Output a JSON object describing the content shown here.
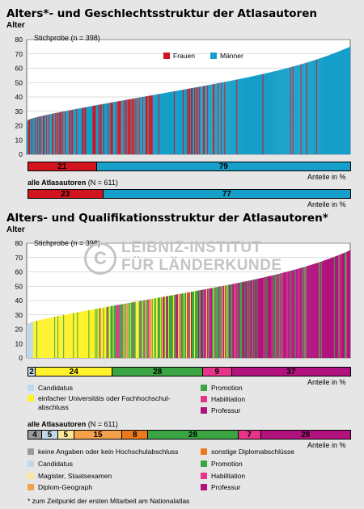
{
  "colors": {
    "frauen": "#d2141e",
    "maenner": "#159fc9",
    "keine": "#9a9a9a",
    "candidatus": "#bfd8ea",
    "universitaet": "#fff22a",
    "magister": "#fbe89a",
    "diplom_geograph": "#f5a04a",
    "sonstige": "#ec7a1c",
    "promotion": "#3aa542",
    "habilitation": "#e8338a",
    "professur": "#b1127e"
  },
  "section1": {
    "title": "Alters*- und Geschlechtsstruktur der Atlasautoren",
    "axis_title": "Alter",
    "sample": "Stichprobe (n = 398)",
    "legend": [
      {
        "label": "Frauen",
        "color": "#d2141e"
      },
      {
        "label": "Männer",
        "color": "#159fc9"
      }
    ],
    "share_sample": [
      {
        "value": "21",
        "pct": 21,
        "color": "#d2141e"
      },
      {
        "value": "79",
        "pct": 79,
        "color": "#159fc9"
      }
    ],
    "share_unit": "Anteile in %",
    "all_label": "alle Atlasautoren",
    "all_n": "(N = 611)",
    "share_all": [
      {
        "value": "23",
        "pct": 23,
        "color": "#d2141e"
      },
      {
        "value": "77",
        "pct": 77,
        "color": "#159fc9"
      }
    ],
    "share_unit2": "Anteile in %"
  },
  "section2": {
    "title": "Alters- und Qualifikationsstruktur der Atlasautoren*",
    "axis_title": "Alter",
    "sample": "Stichprobe (n = 398)",
    "watermark_line1": "LEIBNIZ-INSTITUT",
    "watermark_line2": "FÜR LÄNDERKUNDE",
    "share_sample": [
      {
        "value": "2",
        "pct": 2,
        "color": "#bfd8ea"
      },
      {
        "value": "24",
        "pct": 24,
        "color": "#fff22a"
      },
      {
        "value": "28",
        "pct": 28,
        "color": "#3aa542"
      },
      {
        "value": "9",
        "pct": 9,
        "color": "#e8338a"
      },
      {
        "value": "37",
        "pct": 37,
        "color": "#b1127e"
      }
    ],
    "share_unit": "Anteile in %",
    "legend_sample": [
      {
        "label": "Candidatus",
        "color": "#bfd8ea"
      },
      {
        "label": "einfacher Universitäts oder Fachhochschul-",
        "label2": "abschluss",
        "color": "#fff22a"
      },
      {
        "label": "Promotion",
        "color": "#3aa542"
      },
      {
        "label": "Habilitation",
        "color": "#e8338a"
      },
      {
        "label": "Professur",
        "color": "#b1127e"
      }
    ],
    "all_label": "alle Atlasautoren",
    "all_n": "(N = 611)",
    "share_all": [
      {
        "value": "4",
        "pct": 4,
        "color": "#9a9a9a"
      },
      {
        "value": "5",
        "pct": 5,
        "color": "#bfd8ea"
      },
      {
        "value": "5",
        "pct": 5,
        "color": "#fbe89a"
      },
      {
        "value": "15",
        "pct": 15,
        "color": "#f5a04a"
      },
      {
        "value": "8",
        "pct": 8,
        "color": "#ec7a1c"
      },
      {
        "value": "28",
        "pct": 28,
        "color": "#3aa542"
      },
      {
        "value": "7",
        "pct": 7,
        "color": "#e8338a"
      },
      {
        "value": "28",
        "pct": 28,
        "color": "#b1127e"
      }
    ],
    "share_unit2": "Anteile in %",
    "legend_all": [
      {
        "label": "keine Angaben oder kein Hochschulabschluss",
        "color": "#9a9a9a"
      },
      {
        "label": "sonstige Diplomabschlüsse",
        "color": "#ec7a1c"
      },
      {
        "label": "Candidatus",
        "color": "#bfd8ea"
      },
      {
        "label": "Promotion",
        "color": "#3aa542"
      },
      {
        "label": "Magister, Staatsexamen",
        "color": "#fbe89a"
      },
      {
        "label": "Habilitation",
        "color": "#e8338a"
      },
      {
        "label": "Diplom-Geograph",
        "color": "#f5a04a"
      },
      {
        "label": "Professur",
        "color": "#b1127e"
      }
    ],
    "footnote": "* zum Zeitpunkt der ersten Mitarbeit am Nationalatlas"
  },
  "chart_data": [
    {
      "type": "bar",
      "title": "Alters*- und Geschlechtsstruktur der Atlasautoren",
      "ylabel": "Alter",
      "ylim": [
        0,
        80
      ],
      "yticks": [
        0,
        10,
        20,
        30,
        40,
        50,
        60,
        70,
        80
      ],
      "n": 398,
      "sorted_ascending": true,
      "age_range": [
        23,
        75
      ],
      "series": [
        {
          "name": "Frauen"
        },
        {
          "name": "Männer"
        }
      ],
      "shares_sample_pct": {
        "Frauen": 21,
        "Männer": 79
      },
      "shares_all_pct": {
        "Frauen": 23,
        "Männer": 77
      },
      "all_N": 611
    },
    {
      "type": "bar",
      "title": "Alters- und Qualifikationsstruktur der Atlasautoren*",
      "ylabel": "Alter",
      "ylim": [
        0,
        80
      ],
      "yticks": [
        0,
        10,
        20,
        30,
        40,
        50,
        60,
        70,
        80
      ],
      "n": 398,
      "sorted_ascending": true,
      "age_range": [
        23,
        75
      ],
      "shares_sample_pct": {
        "Candidatus": 2,
        "einfacher Universitäts oder Fachhochschulabschluss": 24,
        "Promotion": 28,
        "Habilitation": 9,
        "Professur": 37
      },
      "shares_all_pct": {
        "keine Angaben oder kein Hochschulabschluss": 4,
        "Candidatus": 5,
        "Magister, Staatsexamen": 5,
        "Diplom-Geograph": 15,
        "sonstige Diplomabschlüsse": 8,
        "Promotion": 28,
        "Habilitation": 7,
        "Professur": 28
      },
      "all_N": 611
    }
  ]
}
